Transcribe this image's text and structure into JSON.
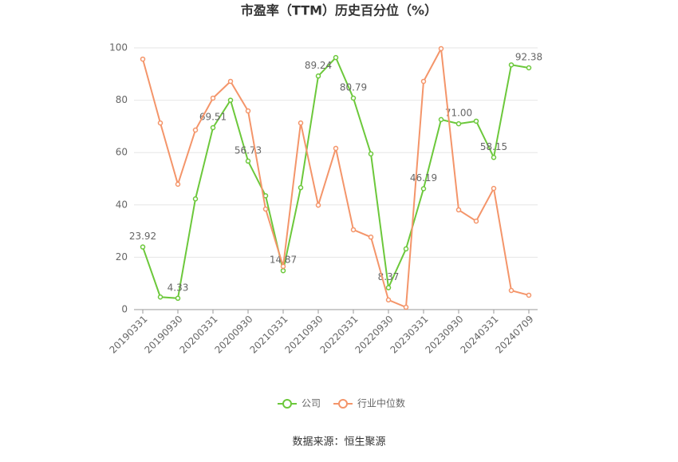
{
  "chart_data": {
    "type": "line",
    "title": "市盈率（TTM）历史百分位（%）",
    "source": "数据来源：恒生聚源",
    "categories": [
      "20190331",
      null,
      "20190930",
      null,
      "20200331",
      null,
      "20200930",
      null,
      "20210331",
      null,
      "20210930",
      null,
      "20220331",
      null,
      "20220930",
      null,
      "20230331",
      null,
      "20230930",
      null,
      "20240331",
      null,
      "20240709"
    ],
    "series": [
      {
        "name": "公司",
        "color": "#6cc83b",
        "values": [
          23.92,
          4.8,
          4.33,
          42.3,
          69.51,
          80,
          56.73,
          43.5,
          14.87,
          46.6,
          89.24,
          96.3,
          80.79,
          59.5,
          8.37,
          23.2,
          46.19,
          72.6,
          71.0,
          72.0,
          58.15,
          93.5,
          92.38
        ],
        "value_labels": [
          "23.92",
          null,
          "4.33",
          null,
          "69.51",
          null,
          "56.73",
          null,
          "14.87",
          null,
          "89.24",
          null,
          "80.79",
          null,
          "8.37",
          null,
          "46.19",
          null,
          "71.00",
          null,
          "58.15",
          null,
          "92.38"
        ]
      },
      {
        "name": "行业中位数",
        "color": "#f4956a",
        "values": [
          95.7,
          71.3,
          47.9,
          68.6,
          80.8,
          87.2,
          75.9,
          38.4,
          16.5,
          71.3,
          39.9,
          61.6,
          30.5,
          27.7,
          3.7,
          0.9,
          87.2,
          99.7,
          38.1,
          33.8,
          46.3,
          7.3,
          5.5
        ]
      }
    ],
    "ylim": [
      0,
      100
    ],
    "yticks": [
      0,
      20,
      40,
      60,
      80,
      100
    ],
    "grid": true,
    "legend": "bottom"
  }
}
